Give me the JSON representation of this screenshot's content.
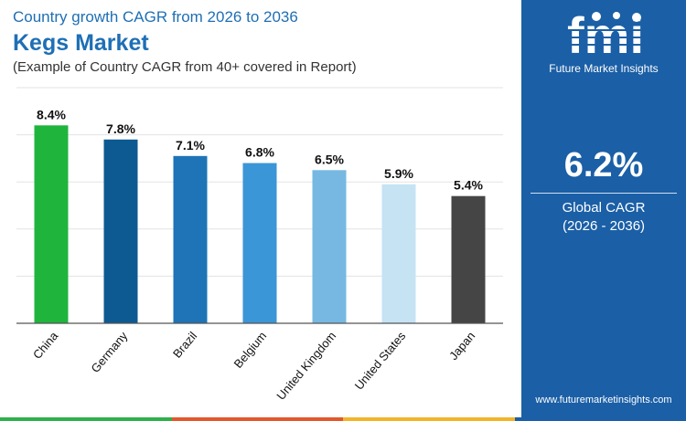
{
  "header": {
    "subtitle": "Country growth CAGR from 2026 to 2036",
    "title": "Kegs Market",
    "note": "(Example of Country CAGR from 40+ covered in Report)"
  },
  "chart_data": {
    "type": "bar",
    "title": "Kegs Market",
    "categories": [
      "China",
      "Germany",
      "Brazil",
      "Belgium",
      "United Kingdom",
      "United States",
      "Japan"
    ],
    "values": [
      8.4,
      7.8,
      7.1,
      6.8,
      6.5,
      5.9,
      5.4
    ],
    "value_labels": [
      "8.4%",
      "7.8%",
      "7.1%",
      "6.8%",
      "6.5%",
      "5.9%",
      "5.4%"
    ],
    "colors": [
      "#1fb53d",
      "#0d5a92",
      "#1e74b6",
      "#3a96d6",
      "#76b8e2",
      "#c6e3f4",
      "#454545"
    ],
    "ylim": [
      0,
      10
    ],
    "grid": true,
    "xlabel": "",
    "ylabel": ""
  },
  "panel": {
    "logo_text": "fmi",
    "logo_caption": "Future Market Insights",
    "stat_value": "6.2%",
    "stat_label_line1": "Global CAGR",
    "stat_label_line2": "(2026 - 2036)",
    "url": "www.futuremarketinsights.com",
    "bg_color": "#1b5fa6"
  },
  "bottom_bar_colors": [
    "#2fb04a",
    "#e2582c",
    "#f2b429",
    "#1b5fa6"
  ]
}
